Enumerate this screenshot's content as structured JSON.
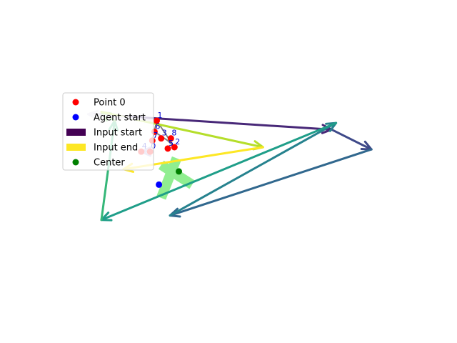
{
  "chart_data": {
    "type": "scatter",
    "title": "",
    "xlabel": "",
    "ylabel": "",
    "axes_visible": false,
    "grid": false,
    "xlim": [
      -1.0,
      7.0
    ],
    "ylim": [
      -1.0,
      5.0
    ],
    "legend": {
      "placement": "upper-left",
      "entries": [
        {
          "label": "Point 0",
          "kind": "dot",
          "color": "#ff0000"
        },
        {
          "label": "Agent start",
          "kind": "dot",
          "color": "#0000ff"
        },
        {
          "label": "Input start",
          "kind": "bar",
          "color": "#440154"
        },
        {
          "label": "Input end",
          "kind": "bar",
          "color": "#fde725"
        },
        {
          "label": "Center",
          "kind": "dot",
          "color": "#008000"
        }
      ]
    },
    "points": [
      {
        "label": "0",
        "x": 1.1,
        "y": 2.5
      },
      {
        "label": "1",
        "x": 1.25,
        "y": 3.2
      },
      {
        "label": "2",
        "x": 1.65,
        "y": 2.6
      },
      {
        "label": "3",
        "x": 1.35,
        "y": 2.8
      },
      {
        "label": "4",
        "x": 0.9,
        "y": 2.5
      },
      {
        "label": "5",
        "x": 1.5,
        "y": 2.57
      },
      {
        "label": "6",
        "x": 1.2,
        "y": 2.95
      },
      {
        "label": "7",
        "x": 1.15,
        "y": 2.75
      },
      {
        "label": "8",
        "x": 1.57,
        "y": 2.8
      }
    ],
    "point_color": "#ff0000",
    "label_color": "#0000cc",
    "agent_start": {
      "x": 1.3,
      "y": 1.75
    },
    "agent_color": "#0000ff",
    "center": {
      "x": 1.75,
      "y": 2.05
    },
    "center_color": "#008000",
    "shape": {
      "color": "#90ee90",
      "segments": [
        {
          "from": {
            "x": 1.35,
            "y": 1.45
          },
          "to": {
            "x": 1.7,
            "y": 2.35
          }
        },
        {
          "from": {
            "x": 1.35,
            "y": 2.2
          },
          "to": {
            "x": 2.05,
            "y": 1.75
          }
        }
      ]
    },
    "outline": {
      "color": "#808080",
      "path": [
        {
          "x": 1.15,
          "y": 2.75
        },
        {
          "x": 1.25,
          "y": 3.2
        },
        {
          "x": 1.65,
          "y": 2.6
        },
        {
          "x": 1.5,
          "y": 2.75
        },
        {
          "x": 1.2,
          "y": 2.95
        }
      ]
    },
    "arrows": [
      {
        "from": {
          "x": 1.1,
          "y": 2.5
        },
        "to": {
          "x": 0.9,
          "y": 2.5
        },
        "color": "#b6a6d6"
      },
      {
        "from": {
          "x": -0.25,
          "y": 3.35
        },
        "to": {
          "x": 5.2,
          "y": 3.0
        },
        "color": "#482878"
      },
      {
        "from": {
          "x": 5.2,
          "y": 3.0
        },
        "to": {
          "x": 6.1,
          "y": 2.55
        },
        "color": "#3e4989"
      },
      {
        "from": {
          "x": 6.1,
          "y": 2.55
        },
        "to": {
          "x": 1.55,
          "y": 1.05
        },
        "color": "#31688e"
      },
      {
        "from": {
          "x": 1.55,
          "y": 1.05
        },
        "to": {
          "x": 5.3,
          "y": 3.15
        },
        "color": "#26828e"
      },
      {
        "from": {
          "x": 5.3,
          "y": 3.15
        },
        "to": {
          "x": 0.0,
          "y": 0.95
        },
        "color": "#1f9e89"
      },
      {
        "from": {
          "x": 0.0,
          "y": 0.95
        },
        "to": {
          "x": 0.3,
          "y": 3.2
        },
        "color": "#35b779"
      },
      {
        "from": {
          "x": 0.3,
          "y": 3.2
        },
        "to": {
          "x": 0.0,
          "y": 3.4
        },
        "color": "#6ece58"
      },
      {
        "from": {
          "x": 0.0,
          "y": 3.4
        },
        "to": {
          "x": 3.65,
          "y": 2.6
        },
        "color": "#b5de2b"
      },
      {
        "from": {
          "x": 3.65,
          "y": 2.6
        },
        "to": {
          "x": 0.5,
          "y": 2.1
        },
        "color": "#fde725"
      },
      {
        "from": {
          "x": 1.25,
          "y": 3.2
        },
        "to": {
          "x": -0.3,
          "y": 3.35
        },
        "color": "#dcd5ea"
      }
    ]
  }
}
